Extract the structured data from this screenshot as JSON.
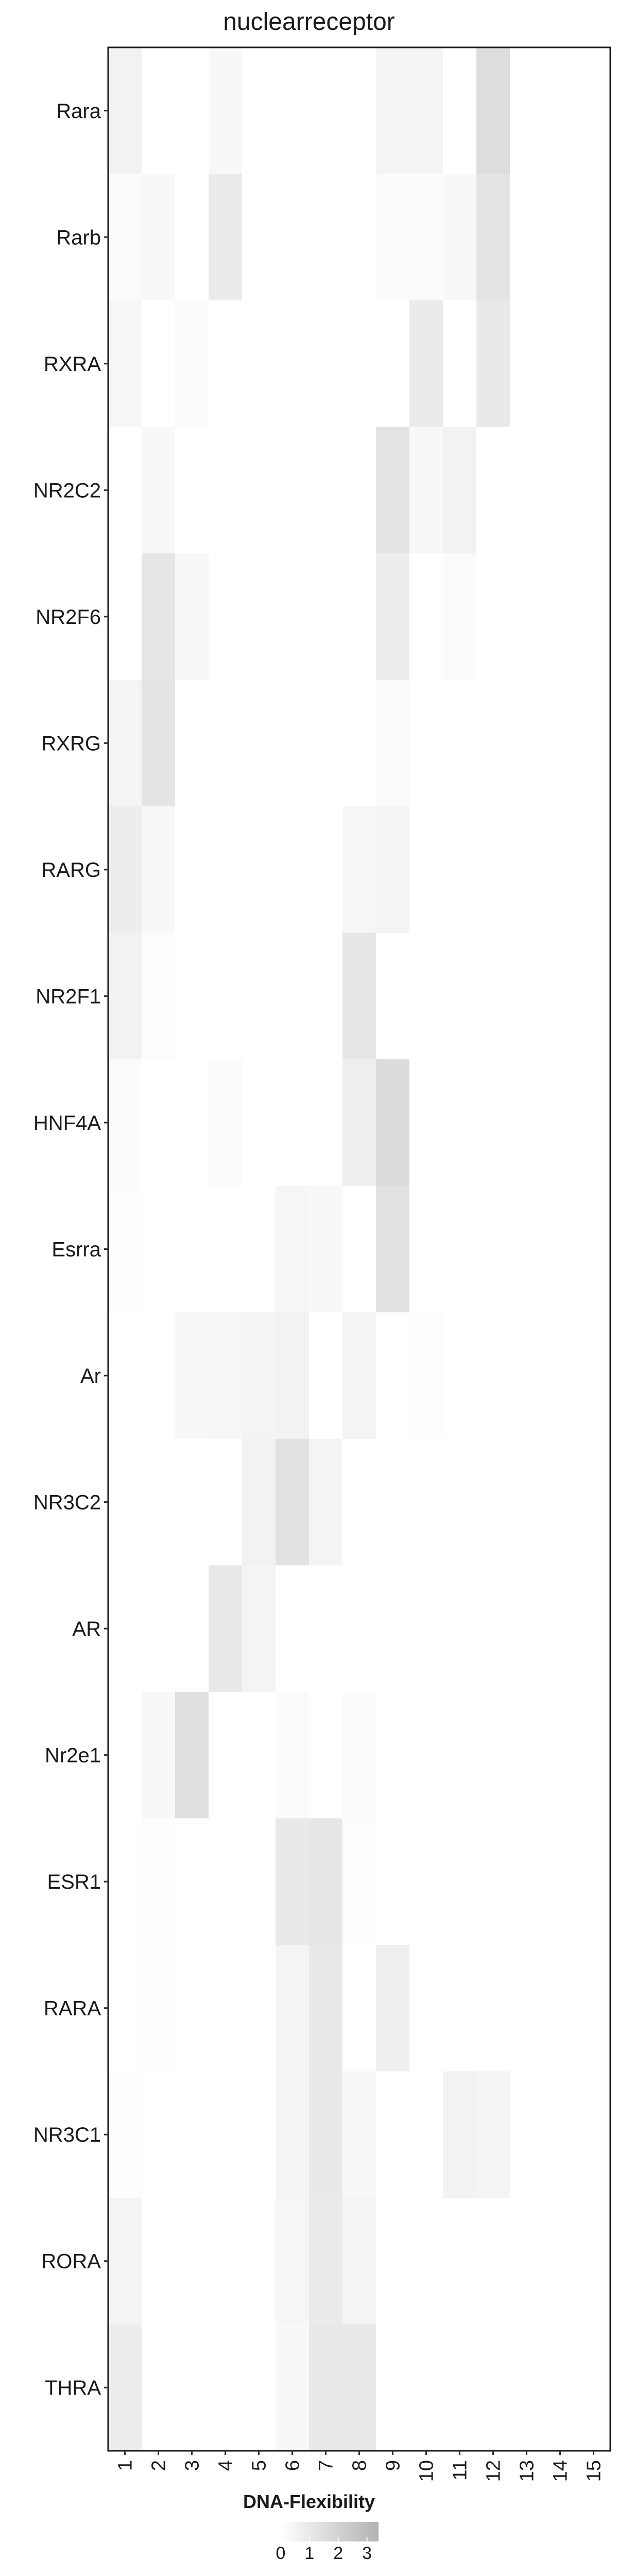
{
  "chart_data": {
    "type": "heatmap",
    "title": "nuclearreceptor",
    "x": [
      "1",
      "2",
      "3",
      "4",
      "5",
      "6",
      "7",
      "8",
      "9",
      "10",
      "11",
      "12",
      "13",
      "14",
      "15"
    ],
    "y": [
      "Rara",
      "Rarb",
      "RXRA",
      "NR2C2",
      "NR2F6",
      "RXRG",
      "RARG",
      "NR2F1",
      "HNF4A",
      "Esrra",
      "Ar",
      "NR3C2",
      "AR",
      "Nr2e1",
      "ESR1",
      "RARA",
      "NR3C1",
      "RORA",
      "THRA"
    ],
    "values": [
      [
        0.6,
        0,
        0,
        0.3,
        0,
        0,
        0,
        0,
        0.5,
        0.5,
        0,
        1.5,
        0,
        0,
        0
      ],
      [
        0.2,
        0.3,
        0,
        0.9,
        0,
        0,
        0,
        0,
        0.2,
        0.2,
        0.3,
        1.2,
        0,
        0,
        0
      ],
      [
        0.4,
        0,
        0.2,
        0,
        0,
        0,
        0,
        0,
        0,
        0.9,
        0,
        1.0,
        0,
        0,
        0
      ],
      [
        0,
        0.3,
        0,
        0,
        0,
        0,
        0,
        0,
        1.2,
        0.3,
        0.6,
        0,
        0,
        0,
        0
      ],
      [
        0,
        1.1,
        0.3,
        0,
        0,
        0,
        0,
        0,
        0.8,
        0,
        0.2,
        0,
        0,
        0,
        0
      ],
      [
        0.5,
        1.2,
        0,
        0,
        0,
        0,
        0,
        0,
        0.2,
        0,
        0,
        0,
        0,
        0,
        0
      ],
      [
        0.8,
        0.3,
        0,
        0,
        0,
        0,
        0,
        0.4,
        0.5,
        0,
        0,
        0,
        0,
        0,
        0
      ],
      [
        0.6,
        0.1,
        0,
        0,
        0,
        0,
        0,
        1.1,
        0,
        0,
        0,
        0,
        0,
        0,
        0
      ],
      [
        0.2,
        0,
        0,
        0.2,
        0,
        0,
        0,
        0.7,
        1.6,
        0,
        0,
        0,
        0,
        0,
        0
      ],
      [
        0.1,
        0,
        0,
        0,
        0,
        0.4,
        0.3,
        0,
        1.3,
        0,
        0,
        0,
        0,
        0,
        0
      ],
      [
        0,
        0,
        0.3,
        0.4,
        0.5,
        0.6,
        0,
        0.5,
        0,
        0.1,
        0,
        0,
        0,
        0,
        0
      ],
      [
        0,
        0,
        0,
        0,
        0.6,
        1.3,
        0.5,
        0,
        0,
        0,
        0,
        0,
        0,
        0,
        0
      ],
      [
        0,
        0,
        0,
        1.0,
        0.5,
        0,
        0,
        0,
        0,
        0,
        0,
        0,
        0,
        0,
        0
      ],
      [
        0,
        0.3,
        1.4,
        0,
        0,
        0.2,
        0,
        0.2,
        0,
        0,
        0,
        0,
        0,
        0,
        0
      ],
      [
        0,
        0.1,
        0,
        0,
        0,
        1.0,
        1.1,
        0.1,
        0,
        0,
        0,
        0,
        0,
        0,
        0
      ],
      [
        0,
        0.1,
        0,
        0,
        0,
        0.5,
        1.0,
        0,
        0.7,
        0,
        0,
        0,
        0,
        0,
        0
      ],
      [
        0.1,
        0,
        0,
        0,
        0,
        0.5,
        1.0,
        0.3,
        0,
        0,
        0.6,
        0.5,
        0,
        0,
        0
      ],
      [
        0.5,
        0,
        0,
        0,
        0,
        0.4,
        0.9,
        0.5,
        0,
        0,
        0,
        0,
        0,
        0,
        0
      ],
      [
        0.8,
        0,
        0,
        0,
        0,
        0.3,
        1.0,
        1.0,
        0,
        0,
        0,
        0,
        0,
        0,
        0
      ]
    ],
    "legend": {
      "title": "DNA-Flexibility",
      "ticks": [
        0,
        1,
        2,
        3
      ],
      "placement": "bottom",
      "color_low": "#ffffff",
      "color_high": "#b3b3b3",
      "max": 3.4
    },
    "grid": false
  }
}
